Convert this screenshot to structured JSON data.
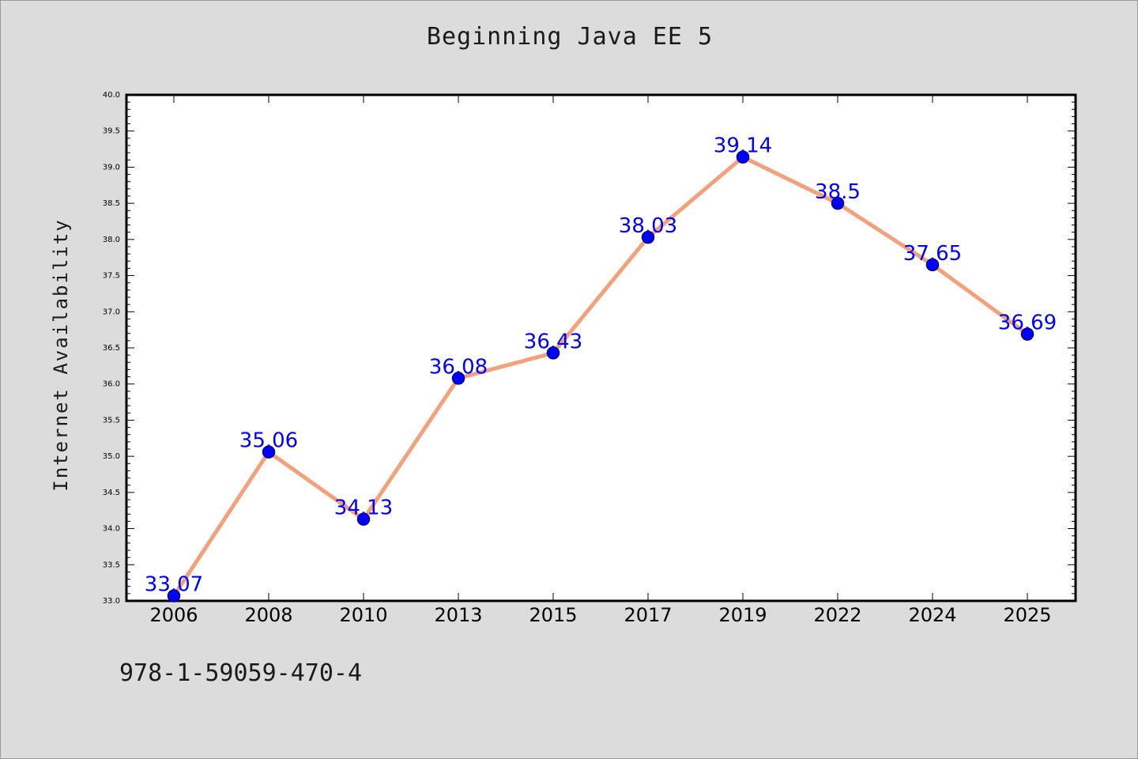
{
  "chart_data": {
    "type": "line",
    "title": "Beginning Java EE 5",
    "xlabel": "",
    "ylabel": "Internet Availability",
    "categories": [
      "2006",
      "2008",
      "2010",
      "2013",
      "2015",
      "2017",
      "2019",
      "2022",
      "2024",
      "2025"
    ],
    "series": [
      {
        "values": [
          33.07,
          35.06,
          34.13,
          36.08,
          36.43,
          38.03,
          39.14,
          38.5,
          37.65,
          36.69
        ]
      }
    ],
    "data_labels": [
      "33.07",
      "35.06",
      "34.13",
      "36.08",
      "36.43",
      "38.03",
      "39.14",
      "38.5",
      "37.65",
      "36.69"
    ],
    "y_ticks": [
      "33.0",
      "33.5",
      "34.0",
      "34.5",
      "35.0",
      "35.5",
      "36.0",
      "36.5",
      "37.0",
      "37.5",
      "38.0",
      "38.5",
      "39.0",
      "39.5",
      "40.0"
    ],
    "ylim": [
      33.0,
      40.0
    ],
    "grid": false,
    "legend": "none",
    "colors": {
      "line": "#f4a07a",
      "marker": "#0000ff",
      "marker_edge": "#000080",
      "data_label": "#0000ff",
      "background": "#dcdcdc",
      "plot_background": "#ffffff"
    }
  },
  "caption": "978-1-59059-470-4"
}
